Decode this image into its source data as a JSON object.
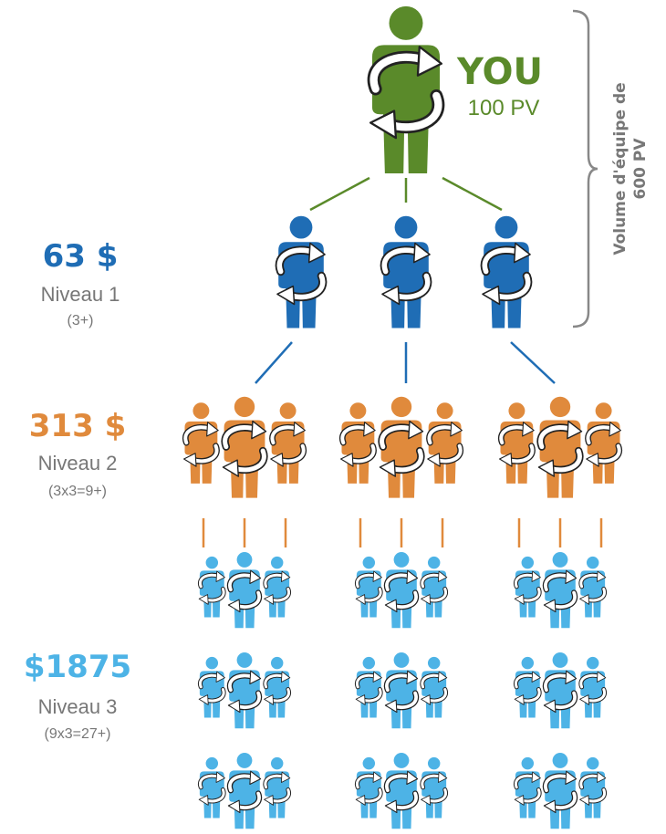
{
  "you": {
    "label": "YOU",
    "volume": "100 PV"
  },
  "team_volume": {
    "line1": "Volume d'équipe de",
    "line2": "600 PV"
  },
  "levels": [
    {
      "amount": "63 $",
      "name": "Niveau 1",
      "count": "(3+)"
    },
    {
      "amount": "313 $",
      "name": "Niveau 2",
      "count": "(3x3=9+)"
    },
    {
      "amount": "$1875",
      "name": "Niveau 3",
      "count": "(9x3=27+)"
    }
  ]
}
